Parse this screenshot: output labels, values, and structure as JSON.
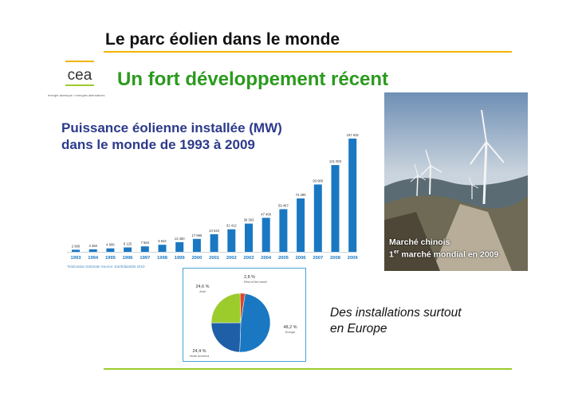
{
  "slide": {
    "title": "Le parc éolien dans le monde",
    "subtitle": "Un fort développement récent",
    "logo_text": "cea",
    "logo_tagline": "énergie atomique • énergies alternatives",
    "colors": {
      "title_rule": "#f0b400",
      "subtitle": "#2b9a1e",
      "bottom_rule": "#9ccc2c",
      "bar": "#1a78c2",
      "chart_title": "#2d3a8c"
    }
  },
  "bar_chart": {
    "title_line1": "Puissance éolienne installée (MW)",
    "title_line2": "dans le monde de 1993 à 2009",
    "source": "*Estimation   Estimate  Source: Earthdata/EB 2010",
    "caption_line1": "Marché chinois",
    "caption_line2_a": "1",
    "caption_line2_sup": "er",
    "caption_line2_b": " marché mondial en 2009"
  },
  "pie_notes": {
    "line1": "Des installations surtout",
    "line2": "en Europe"
  },
  "chart_data": [
    {
      "type": "bar",
      "title": "Puissance éolienne installée (MW) dans le monde de 1993 à 2009",
      "categories": [
        "1993",
        "1994",
        "1995",
        "1996",
        "1997",
        "1998",
        "1999",
        "2000",
        "2001",
        "2002",
        "2003",
        "2004",
        "2005",
        "2006",
        "2007",
        "2008",
        "2009"
      ],
      "values": [
        2900,
        3450,
        4800,
        6125,
        7584,
        9842,
        13460,
        17996,
        24544,
        31412,
        39363,
        47400,
        59467,
        74390,
        93900,
        121003,
        157932
      ],
      "value_labels": [
        "2 900",
        "3 450",
        "4 800",
        "6 125",
        "7 584",
        "9 842",
        "13 460",
        "17 996",
        "24 544",
        "31 412",
        "39 363",
        "47 400",
        "59 467",
        "74 390",
        "93 900",
        "121 003",
        "157 932"
      ],
      "ylim": [
        0,
        160000
      ],
      "grid": false
    },
    {
      "type": "pie",
      "labels": [
        "Europe",
        "North America",
        "Asia",
        "Rest of the world"
      ],
      "values": [
        48.2,
        24.4,
        24.6,
        2.8
      ],
      "value_labels": [
        "48,2 %",
        "24,4 %",
        "24,6 %",
        "2,8 %"
      ],
      "colors": [
        "#1a78c2",
        "#1f5fa8",
        "#9ccc2c",
        "#d9462c"
      ]
    }
  ]
}
